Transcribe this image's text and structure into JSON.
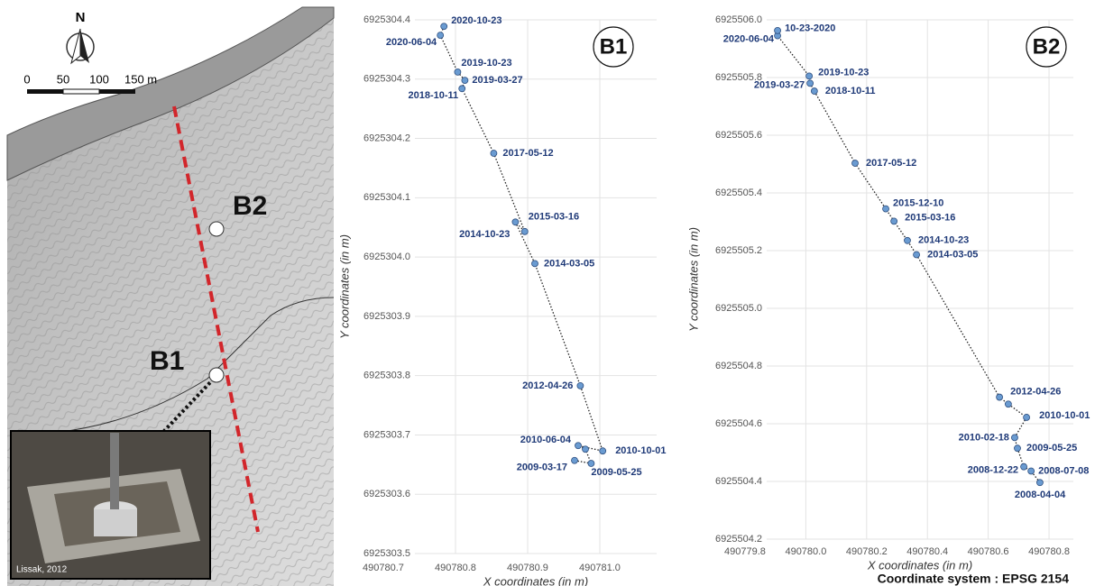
{
  "map": {
    "north": "N",
    "scale_labels": [
      "0",
      "50",
      "100",
      "150 m"
    ],
    "site_b2": "B2",
    "site_b1": "B1",
    "photo_credit": "Lissak, 2012"
  },
  "footer": "Coordinate system : EPSG 2154",
  "chart_data": [
    {
      "type": "scatter",
      "title": "B1",
      "x_label": "X coordinates (in m)",
      "y_label": "Y coordinates (in m)",
      "labels": [
        "2009-03-17",
        "2009-05-25",
        null,
        "2010-06-04",
        "2010-10-01",
        "2012-04-26",
        "2014-03-05",
        "2014-10-23",
        "2015-03-16",
        "2017-05-12",
        "2018-10-11",
        "2019-03-27",
        "2019-10-23",
        "2020-06-04",
        "2020-10-23"
      ],
      "x": [
        490780.965,
        490780.988,
        490780.98,
        490780.97,
        490781.004,
        490780.973,
        490780.91,
        490780.883,
        490780.896,
        490780.853,
        490780.809,
        490780.813,
        490780.803,
        490780.779,
        490780.784
      ],
      "values": [
        6925303.657,
        6925303.652,
        6925303.676,
        6925303.682,
        6925303.673,
        6925303.783,
        6925303.989,
        6925304.059,
        6925304.043,
        6925304.175,
        6925304.284,
        6925304.298,
        6925304.312,
        6925304.374,
        6925304.389
      ],
      "color": "#6a9bd1",
      "label_color": "#1f3a78",
      "line_color": "#222222",
      "grid": true,
      "xlim": [
        490780.7,
        490781.07
      ],
      "xticks": [
        490780.7,
        490780.8,
        490780.9,
        {
          "value": 490781.0,
          "label": "490781.0"
        }
      ],
      "ylim": [
        6925303.5,
        6925304.4
      ],
      "yticks": [
        6925303.5,
        6925303.6,
        6925303.7,
        6925303.8,
        6925303.9,
        {
          "value": 6925304.0,
          "label": "6925304.0"
        },
        6925304.1,
        6925304.2,
        6925304.3,
        6925304.4
      ]
    },
    {
      "type": "scatter",
      "title": "B2",
      "x_label": "X coordinates (in m)",
      "y_label": "Y coordinates (in m)",
      "labels": [
        "2008-04-04",
        "2008-07-08",
        "2008-12-22",
        "2009-05-25",
        "2010-02-18",
        "2010-10-01",
        null,
        "2012-04-26",
        "2014-03-05",
        "2014-10-23",
        "2015-03-16",
        "2015-12-10",
        "2017-05-12",
        "2018-10-11",
        "2019-03-27",
        "2019-10-23",
        "2020-06-04",
        "10-23-2020"
      ],
      "x": [
        490780.77,
        490780.741,
        490780.717,
        490780.696,
        490780.687,
        490780.726,
        490780.666,
        490780.637,
        490780.364,
        490780.334,
        490780.29,
        490780.263,
        490780.162,
        490780.028,
        490780.014,
        490780.011,
        490779.907,
        490779.907
      ],
      "values": [
        6925504.396,
        6925504.436,
        6925504.451,
        6925504.515,
        6925504.552,
        6925504.622,
        6925504.668,
        6925504.692,
        6925505.186,
        6925505.235,
        6925505.302,
        6925505.345,
        6925505.503,
        6925505.753,
        6925505.78,
        6925505.805,
        6925505.945,
        6925505.963
      ],
      "color": "#6a9bd1",
      "label_color": "#1f3a78",
      "line_color": "#222222",
      "grid": true,
      "xlim": [
        490779.8,
        490780.88
      ],
      "xticks": [
        490779.8,
        {
          "value": 490780.0,
          "label": "490780.0"
        },
        490780.2,
        490780.4,
        490780.6,
        490780.8
      ],
      "ylim": [
        6925504.2,
        {
          "value": 6925506.0,
          "label": "6925506.0"
        }
      ],
      "yticks": [
        6925504.2,
        6925504.4,
        6925504.6,
        6925504.8,
        {
          "value": 6925505.0,
          "label": "6925505.0"
        },
        6925505.2,
        6925505.4,
        6925505.6,
        6925505.8,
        {
          "value": 6925506.0,
          "label": "6925506.0"
        }
      ]
    }
  ]
}
